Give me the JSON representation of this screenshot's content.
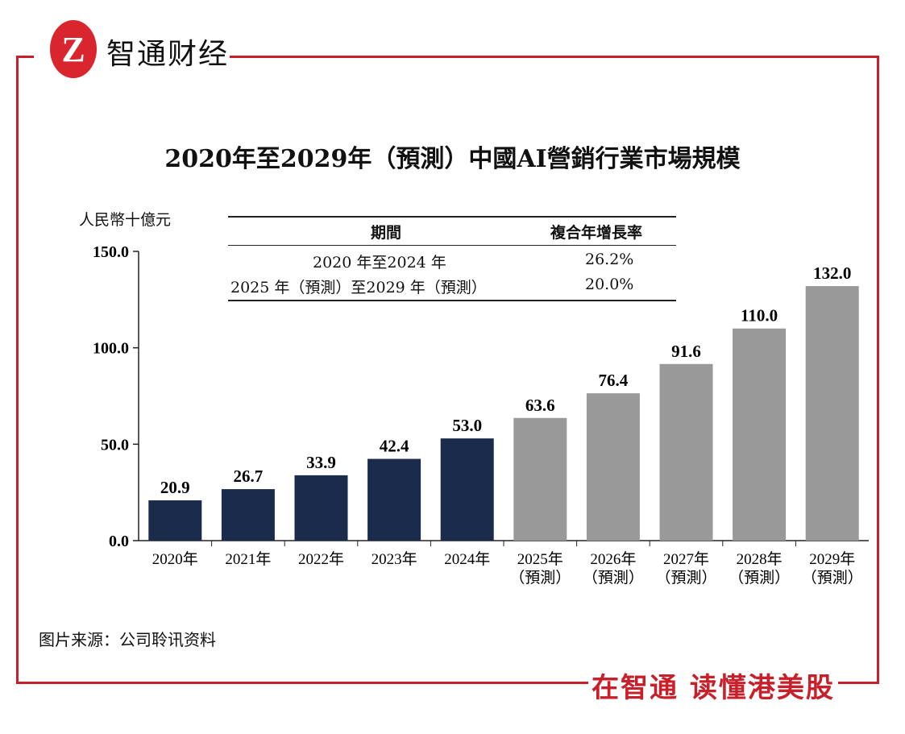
{
  "brand": {
    "logo_letter": "Z",
    "name": "智通财经",
    "slogan": "在智通 读懂港美股",
    "color": "#c8202a"
  },
  "source": "图片来源：公司聆讯资料",
  "cagr_table": {
    "headers": [
      "期間",
      "複合年增長率"
    ],
    "rows": [
      {
        "period": "2020 年至2024 年",
        "rate": "26.2%"
      },
      {
        "period": "2025 年（預測）至2029 年（預測）",
        "rate": "20.0%"
      }
    ]
  },
  "chart_data": {
    "type": "bar",
    "title": "2020年至2029年（預測）中國AI營銷行業市場規模",
    "ylabel": "人民幣十億元",
    "ylim": [
      0,
      150
    ],
    "yticks": [
      "0.0",
      "50.0",
      "100.0",
      "150.0"
    ],
    "categories": [
      "2020年",
      "2021年",
      "2022年",
      "2023年",
      "2024年",
      "2025年\n（預測）",
      "2026年\n（預測）",
      "2027年\n（預測）",
      "2028年\n（預測）",
      "2029年\n（預測）"
    ],
    "values": [
      20.9,
      26.7,
      33.9,
      42.4,
      53.0,
      63.6,
      76.4,
      91.6,
      110.0,
      132.0
    ],
    "labels": [
      "20.9",
      "26.7",
      "33.9",
      "42.4",
      "53.0",
      "63.6",
      "76.4",
      "91.6",
      "110.0",
      "132.0"
    ],
    "colors": {
      "actual": "#1b2b4b",
      "forecast": "#999999"
    },
    "forecast_from_index": 5,
    "grid": false
  }
}
